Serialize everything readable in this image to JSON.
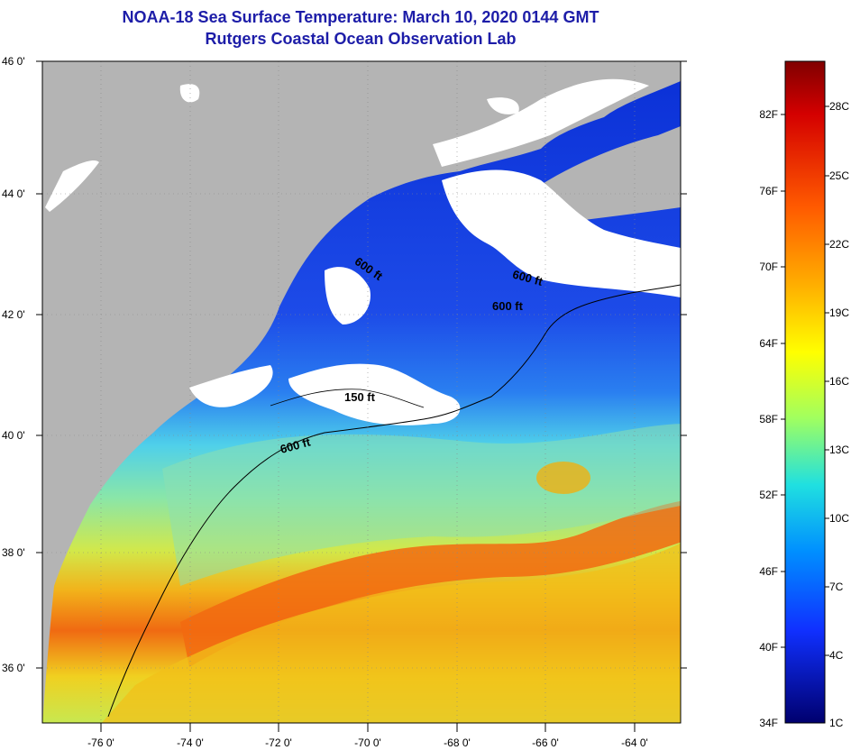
{
  "title_line1": "NOAA-18 Sea Surface Temperature:  March 10, 2020 0144 GMT",
  "title_line2": "Rutgers Coastal Ocean Observation Lab",
  "lat_labels": [
    "46 0'",
    "44 0'",
    "42 0'",
    "40 0'",
    "38 0'",
    "36 0'"
  ],
  "lon_labels": [
    "-76 0'",
    "-74 0'",
    "-72 0'",
    "-70 0'",
    "-68 0'",
    "-66 0'",
    "-64 0'"
  ],
  "contour_labels": [
    "600 ft",
    "600 ft",
    "600 ft",
    "150 ft",
    "600 ft"
  ],
  "colorbar": {
    "fahrenheit": [
      "82F",
      "76F",
      "70F",
      "64F",
      "58F",
      "52F",
      "46F",
      "40F",
      "34F"
    ],
    "celsius": [
      "28C",
      "25C",
      "22C",
      "19C",
      "16C",
      "13C",
      "10C",
      "7C",
      "4C",
      "1C"
    ]
  },
  "colors": {
    "land": "#b4b4b4",
    "cloud": "#ffffff",
    "title": "#1d1da8"
  }
}
